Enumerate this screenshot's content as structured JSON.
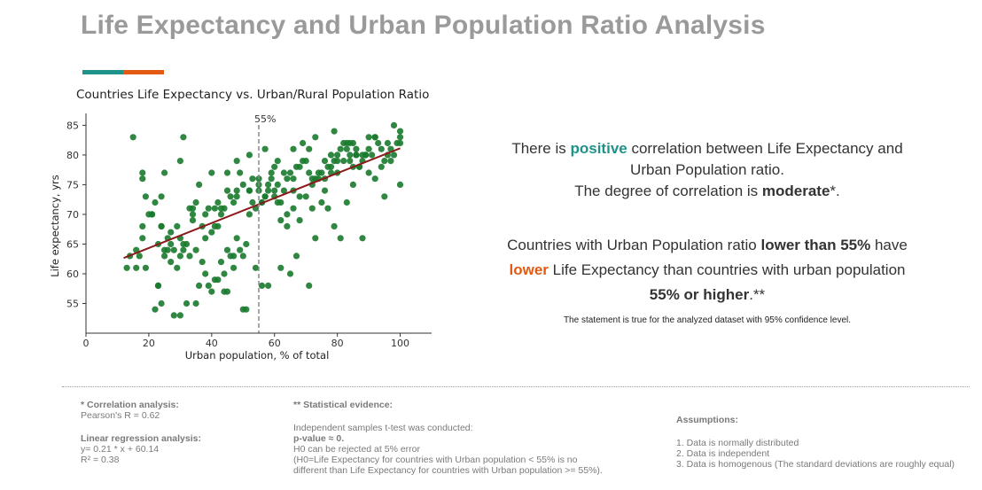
{
  "page": {
    "title": "Life Expectancy and Urban Population Ratio Analysis"
  },
  "accent_colors": {
    "teal": "#1e9389",
    "orange": "#e35b13"
  },
  "chart_data": {
    "type": "scatter",
    "title": "Countries Life Expectancy vs. Urban/Rural Population Ratio",
    "xlabel": "Urban population, % of total",
    "ylabel": "Life expectancy, yrs",
    "xlim": [
      0,
      110
    ],
    "ylim": [
      50,
      87
    ],
    "xticks": [
      0,
      20,
      40,
      60,
      80,
      100
    ],
    "yticks": [
      55,
      60,
      65,
      70,
      75,
      80,
      85
    ],
    "grid": false,
    "point_color": "#1a7a2e",
    "regression": {
      "label": "y= 0.21 * x + 60.14",
      "slope": 0.21,
      "intercept": 60.14,
      "x_range": [
        12,
        100
      ],
      "color": "#8b1a1a"
    },
    "threshold": {
      "x": 55,
      "label": "55%"
    },
    "series": [
      {
        "x": [
          15,
          18,
          18,
          19,
          18,
          22,
          24,
          25,
          19,
          21,
          17,
          23,
          28,
          31,
          30,
          34,
          37,
          38,
          45,
          48,
          52,
          57,
          59,
          61,
          66,
          69,
          71,
          73,
          79,
          83,
          85,
          90,
          92,
          96,
          98,
          100,
          100,
          100,
          100,
          16,
          16,
          18,
          20,
          21,
          23,
          24,
          26,
          27,
          28,
          29,
          30,
          31,
          33,
          34,
          35,
          36,
          37,
          38,
          39,
          40,
          41,
          42,
          43,
          44,
          45,
          46,
          47,
          48,
          49,
          50,
          51,
          52,
          53,
          54,
          55,
          56,
          57,
          58,
          59,
          60,
          61,
          62,
          63,
          64,
          65,
          66,
          67,
          68,
          69,
          70,
          71,
          72,
          73,
          74,
          75,
          76,
          77,
          78,
          79,
          80,
          81,
          82,
          83,
          84,
          85,
          86,
          87,
          88,
          89,
          90,
          91,
          92,
          93,
          94,
          95,
          96,
          97,
          98,
          14,
          13,
          22,
          23,
          24,
          25,
          26,
          27,
          29,
          30,
          32,
          33,
          35,
          36,
          38,
          39,
          40,
          41,
          42,
          43,
          44,
          46,
          47,
          48,
          49,
          50,
          52,
          53,
          55,
          56,
          57,
          58,
          60,
          62,
          64,
          66,
          68,
          70,
          72,
          74,
          76,
          78,
          80,
          82,
          84,
          86,
          88,
          90,
          25,
          40,
          41,
          42,
          43,
          45,
          48,
          55,
          60,
          63,
          66,
          75,
          80,
          85,
          87,
          89,
          58,
          50,
          35,
          44,
          47,
          30,
          31,
          32,
          45,
          51,
          54,
          56,
          62,
          65,
          67,
          71,
          73,
          77,
          79,
          81,
          83,
          88,
          92,
          94,
          24,
          27,
          34,
          52,
          61,
          64,
          68,
          72,
          76,
          78,
          84,
          86,
          95,
          97,
          99
        ],
        "y": [
          83,
          76,
          77,
          73,
          66,
          72,
          73,
          77,
          61,
          70,
          63,
          58,
          53,
          83,
          79,
          71,
          68,
          66,
          77,
          79,
          80,
          81,
          77,
          79,
          81,
          82,
          81,
          83,
          84,
          82,
          82,
          83,
          83,
          82,
          85,
          84,
          83,
          82,
          75,
          61,
          64,
          68,
          70,
          70,
          65,
          68,
          66,
          67,
          64,
          68,
          63,
          65,
          63,
          69,
          64,
          58,
          62,
          60,
          58,
          57,
          59,
          59,
          62,
          60,
          57,
          63,
          61,
          66,
          64,
          63,
          65,
          74,
          72,
          71,
          75,
          72,
          73,
          74,
          76,
          74,
          75,
          72,
          74,
          76,
          77,
          76,
          78,
          78,
          79,
          79,
          77,
          76,
          76,
          76,
          77,
          79,
          78,
          80,
          79,
          80,
          81,
          82,
          81,
          80,
          78,
          80,
          78,
          79,
          80,
          81,
          80,
          83,
          82,
          81,
          79,
          80,
          81,
          80,
          63,
          61,
          54,
          58,
          68,
          64,
          64,
          65,
          61,
          66,
          65,
          71,
          72,
          75,
          70,
          71,
          77,
          71,
          68,
          70,
          71,
          73,
          72,
          74,
          77,
          75,
          74,
          76,
          74,
          72,
          73,
          75,
          73,
          69,
          70,
          71,
          73,
          73,
          75,
          77,
          76,
          77,
          79,
          79,
          82,
          81,
          80,
          77,
          63,
          67,
          68,
          72,
          71,
          74,
          73,
          76,
          78,
          77,
          74,
          72,
          77,
          75,
          78,
          80,
          58,
          54,
          55,
          57,
          63,
          53,
          64,
          55,
          64,
          54,
          61,
          58,
          61,
          60,
          63,
          58,
          66,
          71,
          68,
          66,
          72,
          66,
          76,
          78,
          55,
          62,
          70,
          70,
          72,
          68,
          69,
          71,
          74,
          78,
          79,
          80,
          73,
          79,
          82
        ]
      }
    ]
  },
  "findings": {
    "line1": {
      "pre": "There is ",
      "highlight": "positive",
      "post": " correlation between Life Expectancy and"
    },
    "line2": "Urban Population ratio.",
    "line3": {
      "pre": "The degree of correlation is ",
      "bold": "moderate",
      "post": "*."
    },
    "line4": {
      "pre": "Countries with Urban Population ratio ",
      "bold": "lower than 55%",
      "post": " have"
    },
    "line5": {
      "highlight": "lower",
      "post": " Life Expectancy than countries with urban population"
    },
    "line6": {
      "bold": "55% or higher",
      "post": ".**"
    },
    "confidence_note": "The statement is true for the analyzed dataset with 95% confidence level."
  },
  "footnotes": {
    "correlation": {
      "heading": "* Correlation analysis:",
      "value": "Pearson's R = 0.62"
    },
    "regression": {
      "heading": "Linear regression analysis:",
      "equation": "y= 0.21 * x + 60.14",
      "r2": "R² = 0.38"
    },
    "evidence": {
      "heading": "** Statistical evidence:",
      "test": "Independent samples t-test was conducted:",
      "pvalue": "p-value ≈ 0.",
      "h0_reject": "H0 can be rejected at 5% error",
      "h0_def_1": "(H0=Life Expectancy for countries with Urban population < 55% is no",
      "h0_def_2": "different than Life Expectancy for countries with Urban population >= 55%)."
    },
    "assumptions": {
      "heading": "Assumptions:",
      "items": [
        "1. Data is normally distributed",
        "2. Data is independent",
        "3. Data is homogenous (The standard deviations are roughly equal)"
      ]
    }
  }
}
